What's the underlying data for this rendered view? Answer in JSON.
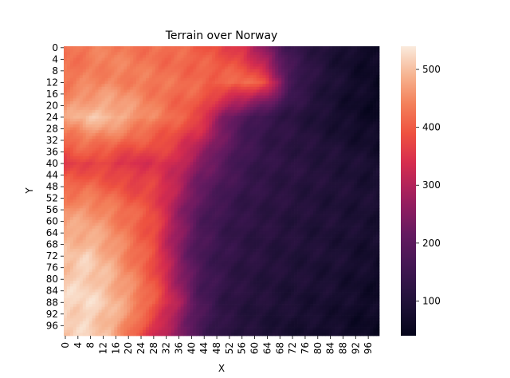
{
  "chart_data": {
    "type": "heatmap",
    "title": "Terrain over Norway",
    "xlabel": "X",
    "ylabel": "Y",
    "x_ticks": [
      "0",
      "4",
      "8",
      "12",
      "16",
      "20",
      "24",
      "28",
      "32",
      "36",
      "40",
      "44",
      "48",
      "52",
      "56",
      "60",
      "64",
      "68",
      "72",
      "76",
      "80",
      "84",
      "88",
      "92",
      "96"
    ],
    "y_ticks": [
      "0",
      "4",
      "8",
      "12",
      "16",
      "20",
      "24",
      "28",
      "32",
      "36",
      "40",
      "44",
      "48",
      "52",
      "56",
      "60",
      "64",
      "68",
      "72",
      "76",
      "80",
      "84",
      "88",
      "92",
      "96"
    ],
    "grid_size": [
      100,
      100
    ],
    "colorbar": {
      "range": [
        40,
        540
      ],
      "ticks": [
        "100",
        "200",
        "300",
        "400",
        "500"
      ],
      "tick_values": [
        100,
        200,
        300,
        400,
        500
      ],
      "colormap": "rocket"
    },
    "estimated_elevation_rows": [
      {
        "y": 0,
        "values": [
          420,
          430,
          440,
          430,
          420,
          415,
          400,
          380,
          340,
          240,
          150,
          120,
          90,
          70,
          60
        ]
      },
      {
        "y": 12,
        "values": [
          430,
          440,
          445,
          440,
          430,
          420,
          415,
          410,
          420,
          380,
          180,
          120,
          90,
          70,
          55
        ]
      },
      {
        "y": 24,
        "values": [
          470,
          500,
          500,
          470,
          440,
          410,
          380,
          260,
          180,
          140,
          120,
          100,
          80,
          65,
          55
        ]
      },
      {
        "y": 40,
        "values": [
          360,
          370,
          360,
          340,
          350,
          330,
          250,
          200,
          150,
          130,
          120,
          110,
          100,
          90,
          80
        ]
      },
      {
        "y": 56,
        "values": [
          460,
          460,
          440,
          410,
          380,
          280,
          190,
          150,
          130,
          120,
          110,
          100,
          95,
          90,
          85
        ]
      },
      {
        "y": 72,
        "values": [
          500,
          510,
          480,
          430,
          380,
          260,
          170,
          140,
          120,
          110,
          100,
          95,
          90,
          80,
          70
        ]
      },
      {
        "y": 88,
        "values": [
          520,
          525,
          500,
          460,
          400,
          300,
          180,
          130,
          110,
          100,
          90,
          85,
          80,
          70,
          60
        ]
      },
      {
        "y": 99,
        "values": [
          510,
          515,
          490,
          420,
          330,
          260,
          170,
          120,
          100,
          90,
          80,
          75,
          70,
          60,
          55
        ]
      }
    ]
  }
}
